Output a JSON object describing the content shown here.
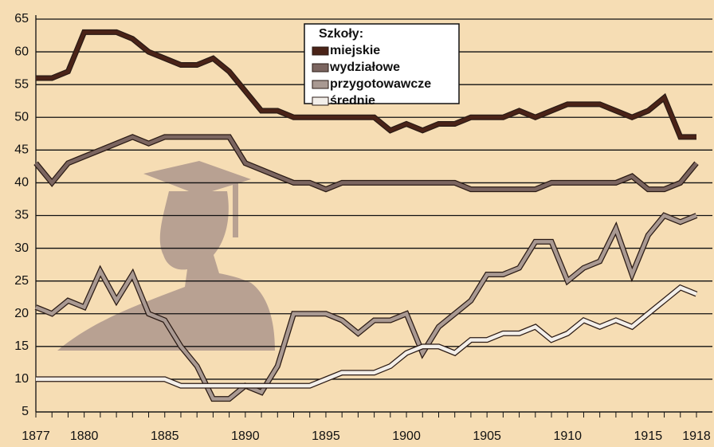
{
  "chart_data": {
    "type": "line",
    "legend_title": "Szkoły:",
    "x": [
      1877,
      1878,
      1879,
      1880,
      1881,
      1882,
      1883,
      1884,
      1885,
      1886,
      1887,
      1888,
      1889,
      1890,
      1891,
      1892,
      1893,
      1894,
      1895,
      1896,
      1897,
      1898,
      1899,
      1900,
      1901,
      1902,
      1903,
      1904,
      1905,
      1906,
      1907,
      1908,
      1909,
      1910,
      1911,
      1912,
      1913,
      1914,
      1915,
      1916,
      1917,
      1918
    ],
    "series": [
      {
        "name": "miejskie",
        "color": "#4a2318",
        "values": [
          56,
          56,
          57,
          63,
          63,
          63,
          62,
          60,
          59,
          58,
          58,
          59,
          57,
          54,
          51,
          51,
          50,
          50,
          50,
          50,
          50,
          50,
          48,
          49,
          48,
          49,
          49,
          50,
          50,
          50,
          51,
          50,
          51,
          52,
          52,
          52,
          51,
          50,
          51,
          53,
          47,
          47
        ]
      },
      {
        "name": "wydziałowe",
        "color": "#7b6560",
        "values": [
          43,
          40,
          43,
          44,
          45,
          46,
          47,
          46,
          47,
          47,
          47,
          47,
          47,
          43,
          42,
          41,
          40,
          40,
          39,
          40,
          40,
          40,
          40,
          40,
          40,
          40,
          40,
          39,
          39,
          39,
          39,
          39,
          40,
          40,
          40,
          40,
          40,
          41,
          39,
          39,
          40,
          43
        ]
      },
      {
        "name": "przygotowawcze",
        "color": "#a99992",
        "values": [
          21,
          20,
          22,
          21,
          26.5,
          22,
          26,
          20,
          19,
          15,
          12,
          7,
          7,
          9,
          8,
          12,
          20,
          20,
          20,
          19,
          17,
          19,
          19,
          20,
          14,
          18,
          20,
          22,
          26,
          26,
          27,
          31,
          31,
          25,
          27,
          28,
          33,
          26,
          32,
          35,
          34,
          35
        ]
      },
      {
        "name": "średnie",
        "color": "#f3efea",
        "values": [
          10,
          10,
          10,
          10,
          10,
          10,
          10,
          10,
          10,
          9,
          9,
          9,
          9,
          9,
          9,
          9,
          9,
          9,
          10,
          11,
          11,
          11,
          12,
          14,
          15,
          15,
          14,
          16,
          16,
          17,
          17,
          18,
          16,
          17,
          19,
          18,
          19,
          18,
          20,
          22,
          24,
          23
        ]
      }
    ],
    "xlim": [
      1877,
      1918
    ],
    "xticks": [
      1877,
      1880,
      1885,
      1890,
      1895,
      1900,
      1905,
      1910,
      1915,
      1918
    ],
    "ylim": [
      5,
      65
    ],
    "yticks": [
      5,
      10,
      15,
      20,
      25,
      30,
      35,
      40,
      45,
      50,
      55,
      60,
      65
    ],
    "grid": true
  }
}
